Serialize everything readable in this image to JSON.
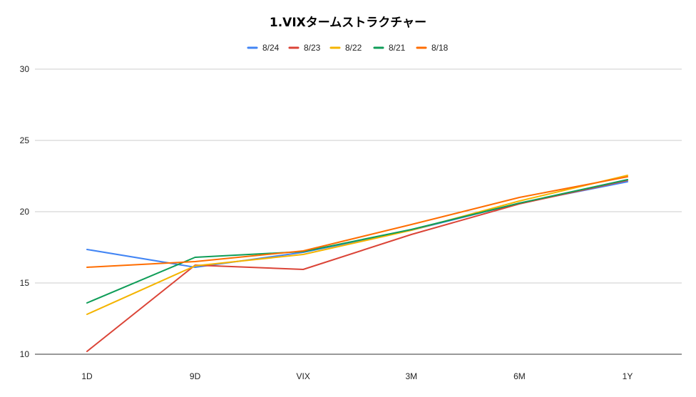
{
  "chart_data": {
    "type": "line",
    "title": "1.VIXタームストラクチャー",
    "xlabel": "",
    "ylabel": "",
    "categories": [
      "1D",
      "9D",
      "VIX",
      "3M",
      "6M",
      "1Y"
    ],
    "ylim": [
      10,
      30
    ],
    "yticks": [
      10,
      15,
      20,
      25,
      30
    ],
    "grid": true,
    "legend_position": "top",
    "series": [
      {
        "name": "8/24",
        "color": "#4285f4",
        "values": [
          17.35,
          16.1,
          17.15,
          18.7,
          20.6,
          22.1
        ]
      },
      {
        "name": "8/23",
        "color": "#db4437",
        "values": [
          10.2,
          16.25,
          15.95,
          18.4,
          20.55,
          22.2
        ]
      },
      {
        "name": "8/22",
        "color": "#f4b400",
        "values": [
          12.8,
          16.2,
          17.0,
          18.7,
          20.75,
          22.55
        ]
      },
      {
        "name": "8/21",
        "color": "#0f9d58",
        "values": [
          13.6,
          16.8,
          17.2,
          18.75,
          20.6,
          22.25
        ]
      },
      {
        "name": "8/18",
        "color": "#ff6d01",
        "values": [
          16.1,
          16.5,
          17.25,
          19.1,
          21.0,
          22.45
        ]
      }
    ]
  }
}
